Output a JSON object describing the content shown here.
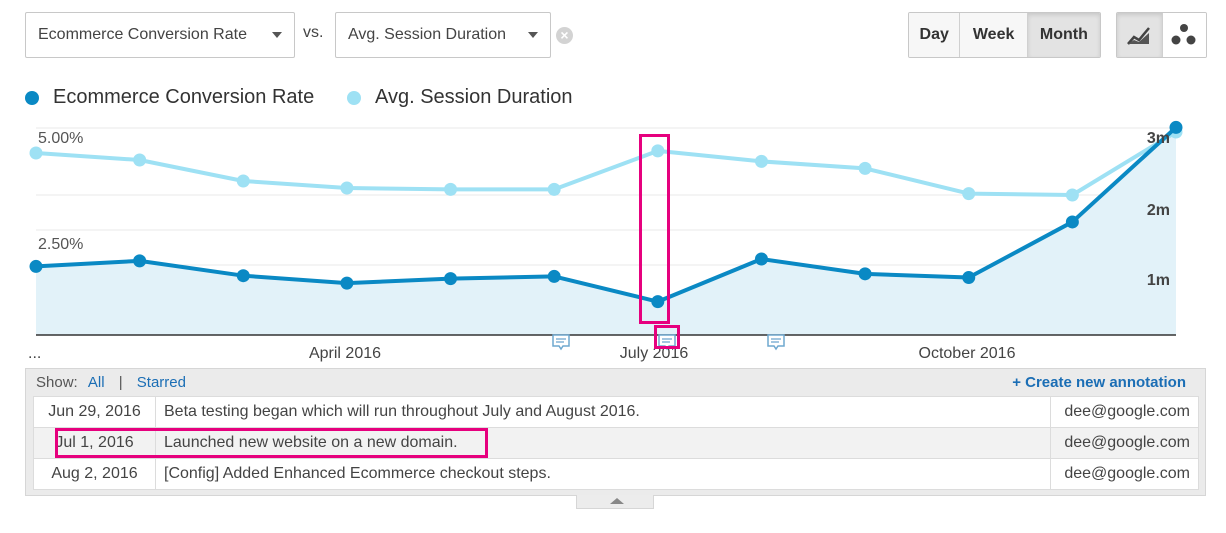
{
  "metric_primary": {
    "label": "Ecommerce Conversion Rate"
  },
  "metric_vs_label": "vs.",
  "metric_secondary": {
    "label": "Avg. Session Duration"
  },
  "granularity": {
    "options": [
      "Day",
      "Week",
      "Month"
    ],
    "selected": "Month"
  },
  "chart_type_icons": [
    "line-chart-icon",
    "motion-chart-icon"
  ],
  "legend": [
    {
      "name": "Ecommerce Conversion Rate",
      "color": "#0a89c4"
    },
    {
      "name": "Avg. Session Duration",
      "color": "#9ee1f4"
    }
  ],
  "chart_data": {
    "type": "line",
    "x_labels": [
      "...",
      "April 2016",
      "July 2016",
      "October 2016"
    ],
    "left_axis": {
      "ticks": [
        "5.00%",
        "2.50%"
      ],
      "range_percent": [
        0,
        5.8
      ]
    },
    "right_axis": {
      "ticks": [
        "3m",
        "2m",
        "1m"
      ],
      "range_minutes": [
        0,
        3
      ]
    },
    "series": [
      {
        "name": "Ecommerce Conversion Rate",
        "axis": "left",
        "color": "#0a89c4",
        "area": true,
        "values": [
          1.85,
          2.0,
          1.6,
          1.4,
          1.52,
          1.58,
          0.9,
          2.05,
          1.65,
          1.55,
          3.05,
          5.6
        ]
      },
      {
        "name": "Avg. Session Duration",
        "axis": "right",
        "color": "#9ee1f4",
        "area": false,
        "values": [
          2.6,
          2.5,
          2.2,
          2.1,
          2.08,
          2.08,
          2.63,
          2.48,
          2.38,
          2.02,
          2.0,
          2.9
        ]
      }
    ],
    "annotation_markers": [
      {
        "date": "Jun 29, 2016"
      },
      {
        "date": "Jul 1, 2016",
        "selected": true
      },
      {
        "date": "Aug 2, 2016"
      }
    ],
    "grid": true
  },
  "annotations": {
    "show_label": "Show:",
    "filter_all": "All",
    "separator": "|",
    "filter_starred": "Starred",
    "create_label": "+ Create new annotation",
    "rows": [
      {
        "date": "Jun 29, 2016",
        "text": "Beta testing began which will run throughout July and August 2016.",
        "user": "dee@google.com"
      },
      {
        "date": "Jul 1, 2016",
        "text": "Launched new website on a new domain.",
        "user": "dee@google.com"
      },
      {
        "date": "Aug 2, 2016",
        "text": "[Config] Added Enhanced Ecommerce checkout steps.",
        "user": "dee@google.com"
      }
    ]
  }
}
